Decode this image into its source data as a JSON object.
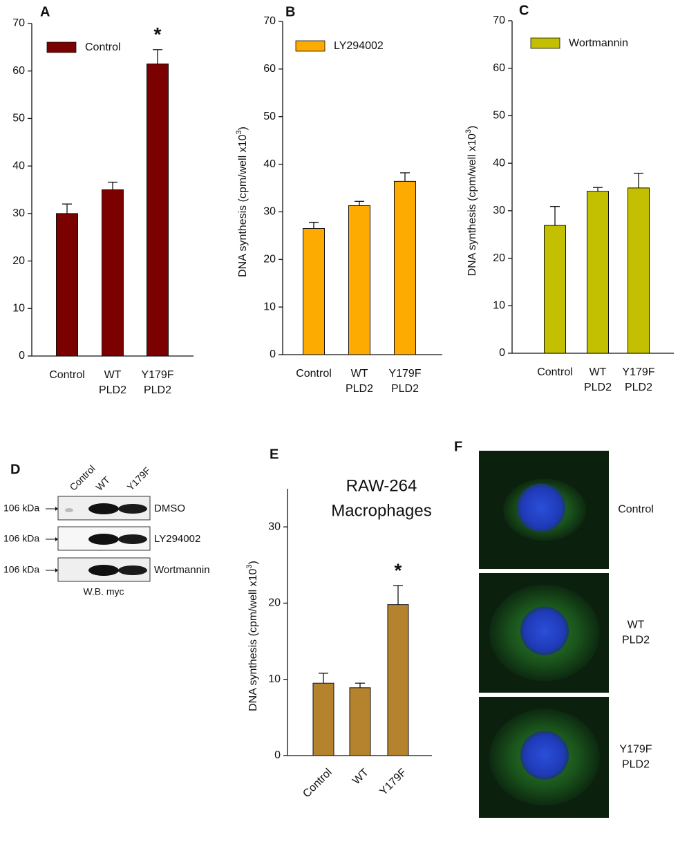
{
  "chart_data": [
    {
      "type": "bar",
      "label": "A",
      "categories": [
        [
          "Control"
        ],
        [
          "WT",
          "PLD2"
        ],
        [
          "Y179F",
          "PLD2"
        ]
      ],
      "series": [
        {
          "name": "Control",
          "color": "#7b0000",
          "values": [
            30,
            35,
            61.5
          ],
          "errors": [
            2,
            1.6,
            3
          ]
        }
      ],
      "ylim": [
        0,
        70
      ],
      "yticks": [
        0,
        10,
        20,
        30,
        40,
        50,
        60,
        70
      ],
      "legend": "upper left",
      "significant": [
        false,
        false,
        true
      ],
      "significance_label": "*"
    },
    {
      "type": "bar",
      "label": "B",
      "ylabel": {
        "text": "DNA synthesis (cpm/well x10",
        "superscript": "3",
        "suffix": ")"
      },
      "categories": [
        [
          "Control"
        ],
        [
          "WT",
          "PLD2"
        ],
        [
          "Y179F",
          "PLD2"
        ]
      ],
      "series": [
        {
          "name": "LY294002",
          "color": "#fdab00",
          "values": [
            26.5,
            31.3,
            36.4
          ],
          "errors": [
            1.3,
            0.9,
            1.8
          ]
        }
      ],
      "ylim": [
        0,
        70
      ],
      "yticks": [
        0,
        10,
        20,
        30,
        40,
        50,
        60,
        70
      ],
      "legend": "upper left"
    },
    {
      "type": "bar",
      "label": "C",
      "ylabel": {
        "text": "DNA synthesis (cpm/well x10",
        "superscript": "3",
        "suffix": ")"
      },
      "categories": [
        [
          "Control"
        ],
        [
          "WT",
          "PLD2"
        ],
        [
          "Y179F",
          "PLD2"
        ]
      ],
      "series": [
        {
          "name": "Wortmannin",
          "color": "#c2c000",
          "values": [
            26.9,
            34.1,
            34.8
          ],
          "errors": [
            4,
            0.8,
            3.1
          ]
        }
      ],
      "ylim": [
        0,
        70
      ],
      "yticks": [
        0,
        10,
        20,
        30,
        40,
        50,
        60,
        70
      ],
      "legend": "upper left"
    },
    {
      "type": "bar",
      "label": "E",
      "title": [
        "RAW-264",
        "Macrophages"
      ],
      "ylabel": {
        "text": "DNA synthesis (cpm/well x10",
        "superscript": "3",
        "suffix": ")"
      },
      "categories": [
        [
          "Control"
        ],
        [
          "WT"
        ],
        [
          "Y179F"
        ]
      ],
      "series": [
        {
          "color": "#b5832e",
          "values": [
            9.5,
            8.9,
            19.8
          ],
          "errors": [
            1.3,
            0.6,
            2.5
          ]
        }
      ],
      "ylim": [
        0,
        35
      ],
      "yticks": [
        0,
        10,
        20,
        30
      ],
      "rotate_categories": true,
      "significant": [
        false,
        false,
        true
      ],
      "significance_label": "*"
    }
  ],
  "blot": {
    "label": "D",
    "lanes": [
      "Control",
      "WT",
      "Y179F"
    ],
    "rows": [
      {
        "marker": "106 kDa",
        "treatment": "DMSO"
      },
      {
        "marker": "106 kDa",
        "treatment": "LY294002"
      },
      {
        "marker": "106 kDa",
        "treatment": "Wortmannin"
      }
    ],
    "caption": "W.B. myc"
  },
  "images": {
    "label": "F",
    "rows": [
      [
        "Control"
      ],
      [
        "WT",
        "PLD2"
      ],
      [
        "Y179F",
        "PLD2"
      ]
    ]
  }
}
